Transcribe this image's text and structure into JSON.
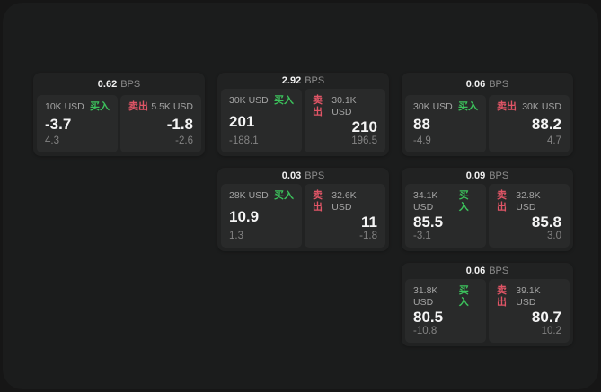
{
  "colors": {
    "buy_green": "#3cc25c",
    "sell_red": "#e05566",
    "panel_bg": "#1b1c1c",
    "card_bg": "#212222"
  },
  "cards": [
    {
      "bps": "0.62",
      "unit": "BPS",
      "buy": {
        "amount": "10K USD",
        "side": "买入",
        "price": "-3.7",
        "sub": "4.3"
      },
      "sell": {
        "side": "卖出",
        "amount": "5.5K USD",
        "price": "-1.8",
        "sub": "-2.6"
      }
    },
    {
      "bps": "2.92",
      "unit": "BPS",
      "buy": {
        "amount": "30K USD",
        "side": "买入",
        "price": "201",
        "sub": "-188.1"
      },
      "sell": {
        "side": "卖出",
        "amount": "30.1K USD",
        "price": "210",
        "sub": "196.5"
      }
    },
    {
      "bps": "0.06",
      "unit": "BPS",
      "buy": {
        "amount": "30K USD",
        "side": "买入",
        "price": "88",
        "sub": "-4.9"
      },
      "sell": {
        "side": "卖出",
        "amount": "30K USD",
        "price": "88.2",
        "sub": "4.7"
      }
    },
    {
      "bps": "0.03",
      "unit": "BPS",
      "buy": {
        "amount": "28K USD",
        "side": "买入",
        "price": "10.9",
        "sub": "1.3"
      },
      "sell": {
        "side": "卖出",
        "amount": "32.6K USD",
        "price": "11",
        "sub": "-1.8"
      }
    },
    {
      "bps": "0.09",
      "unit": "BPS",
      "buy": {
        "amount": "34.1K USD",
        "side": "买入",
        "price": "85.5",
        "sub": "-3.1"
      },
      "sell": {
        "side": "卖出",
        "amount": "32.8K USD",
        "price": "85.8",
        "sub": "3.0"
      }
    },
    {
      "bps": "0.06",
      "unit": "BPS",
      "buy": {
        "amount": "31.8K USD",
        "side": "买入",
        "price": "80.5",
        "sub": "-10.8"
      },
      "sell": {
        "side": "卖出",
        "amount": "39.1K USD",
        "price": "80.7",
        "sub": "10.2"
      }
    }
  ]
}
